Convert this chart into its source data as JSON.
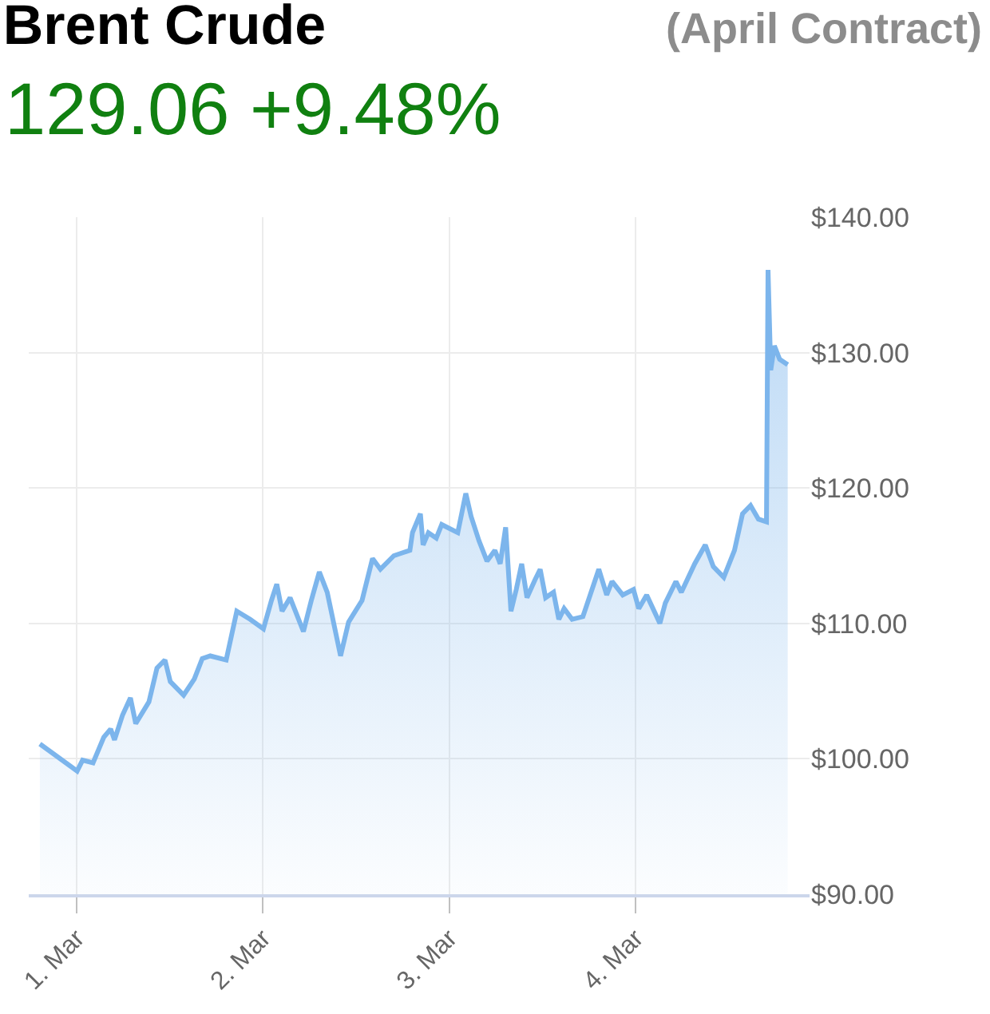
{
  "chart_data": {
    "type": "area",
    "title": "Brent Crude",
    "subtitle": "(April Contract)",
    "annotations": [
      "129.06 +9.48%"
    ],
    "x": [
      "--02-28T19:16",
      "--03-01T00:04",
      "--03-01T00:46",
      "--03-01T02:07",
      "--03-01T03:30",
      "--03-01T04:23",
      "--03-01T04:53",
      "--03-01T05:54",
      "--03-01T06:56",
      "--03-01T07:37",
      "--03-01T09:19",
      "--03-01T10:21",
      "--03-01T11:23",
      "--03-01T12:04",
      "--03-01T13:47",
      "--03-01T15:10",
      "--03-01T16:11",
      "--03-01T17:13",
      "--03-01T19:16",
      "--03-01T20:38",
      "--03-01T22:22",
      "--03-02T00:04",
      "--03-02T01:06",
      "--03-02T01:47",
      "--03-02T02:28",
      "--03-02T03:30",
      "--03-02T05:13",
      "--03-02T06:14",
      "--03-02T07:16",
      "--03-02T08:17",
      "--03-02T10:00",
      "--03-02T11:02",
      "--03-02T12:46",
      "--03-02T14:07",
      "--03-02T15:08",
      "--03-02T16:52",
      "--03-02T18:56",
      "--03-02T19:16",
      "--03-02T20:17",
      "--03-02T20:38",
      "--03-02T21:19",
      "--03-02T22:20",
      "--03-02T23:02",
      "--03-03T01:06",
      "--03-03T02:08",
      "--03-03T02:49",
      "--03-03T03:50",
      "--03-03T04:52",
      "--03-03T05:53",
      "--03-03T06:34",
      "--03-03T07:16",
      "--03-03T07:57",
      "--03-03T08:38",
      "--03-03T09:20",
      "--03-03T10:01",
      "--03-03T11:02",
      "--03-03T11:43",
      "--03-03T12:25",
      "--03-03T13:26",
      "--03-03T14:07",
      "--03-03T14:48",
      "--03-03T15:50",
      "--03-03T17:13",
      "--03-03T19:16",
      "--03-03T20:17",
      "--03-03T20:58",
      "--03-03T22:21",
      "--03-03T23:44",
      "--03-04T00:25",
      "--03-04T01:26",
      "--03-04T03:08",
      "--03-04T03:50",
      "--03-04T05:12",
      "--03-04T05:54",
      "--03-04T07:37",
      "--03-04T08:59",
      "--03-04T10:01",
      "--03-04T11:22",
      "--03-04T12:45",
      "--03-04T13:47",
      "--03-04T14:49",
      "--03-04T15:50",
      "--03-04T16:52",
      "--03-04T17:04",
      "--03-04T17:25",
      "--03-04T17:53",
      "--03-04T18:34",
      "--03-04T19:36"
    ],
    "series": [
      {
        "color": "#7cb5ec",
        "values": [
          101.1,
          99.1,
          99.9,
          99.7,
          101.6,
          102.2,
          101.4,
          103.2,
          104.5,
          102.6,
          104.2,
          106.7,
          107.3,
          105.7,
          104.7,
          105.9,
          107.4,
          107.6,
          107.3,
          110.9,
          110.3,
          109.6,
          111.7,
          112.9,
          110.9,
          111.9,
          109.4,
          111.7,
          113.8,
          112.3,
          107.6,
          110.1,
          111.7,
          114.8,
          114.0,
          115.0,
          115.4,
          116.7,
          118.1,
          115.8,
          116.7,
          116.3,
          117.3,
          116.7,
          119.6,
          117.9,
          116.1,
          114.6,
          115.4,
          114.4,
          117.1,
          110.9,
          112.5,
          114.4,
          111.9,
          113.2,
          114.0,
          111.9,
          112.3,
          110.3,
          111.1,
          110.3,
          110.5,
          114.0,
          112.1,
          113.1,
          112.1,
          112.5,
          111.1,
          112.1,
          110.0,
          111.5,
          113.1,
          112.3,
          114.4,
          115.8,
          114.2,
          113.4,
          115.4,
          118.1,
          118.7,
          117.7,
          117.5,
          136.1,
          128.7,
          130.5,
          129.5,
          129.1
        ]
      }
    ],
    "xlim": [
      "--02-28T17:50",
      "--03-04T22:25"
    ],
    "xticks": [
      {
        "value": "--03-01",
        "label": "1. Mar"
      },
      {
        "value": "--03-02",
        "label": "2. Mar"
      },
      {
        "value": "--03-03",
        "label": "3. Mar"
      },
      {
        "value": "--03-04",
        "label": "4. Mar"
      }
    ],
    "ylim": [
      90,
      140
    ],
    "yticks": [
      {
        "value": 90,
        "label": "$90.00"
      },
      {
        "value": 100,
        "label": "$100.00"
      },
      {
        "value": 110,
        "label": "$110.00"
      },
      {
        "value": 120,
        "label": "$120.00"
      },
      {
        "value": 130,
        "label": "$130.00"
      },
      {
        "value": 140,
        "label": "$140.00"
      }
    ],
    "grid": true,
    "marker": "none",
    "line_style": "solid"
  }
}
